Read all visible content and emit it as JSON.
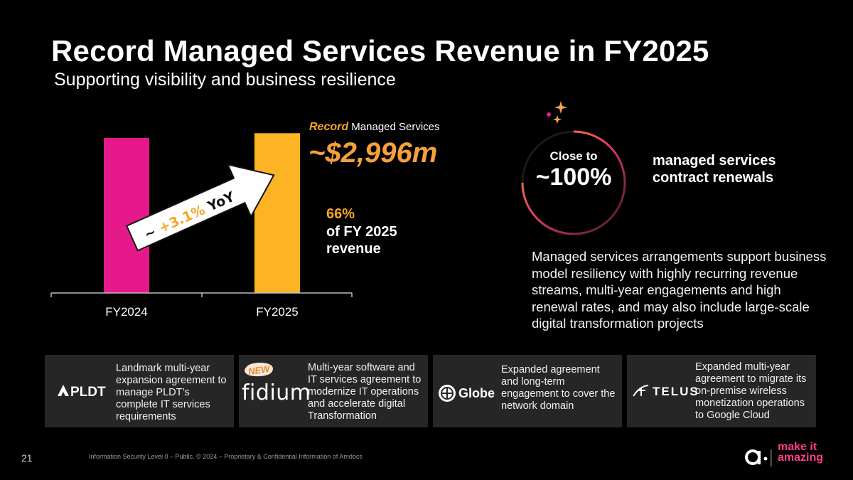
{
  "header": {
    "title": "Record Managed Services Revenue in FY2025",
    "subtitle": "Supporting visibility and business resilience"
  },
  "chart_data": {
    "type": "bar",
    "categories": [
      "FY2024",
      "FY2025"
    ],
    "values": [
      2906,
      2996
    ],
    "colors": [
      "#e6198a",
      "#fcb424"
    ],
    "ylim": [
      0,
      3200
    ],
    "title": "",
    "xlabel": "",
    "ylabel": "",
    "annotation": {
      "prefix": "~ ",
      "growth": "+3.1%",
      "suffix": " YoY"
    }
  },
  "highlight": {
    "record_word": "Record",
    "record_rest": " Managed Services",
    "amount": "~$2,996m",
    "share_pct": "66%",
    "share_text_1": "of FY 2025",
    "share_text_2": "revenue"
  },
  "renewals": {
    "close_to": "Close to",
    "rate": "~100%",
    "label_1": "managed services",
    "label_2": "contract renewals",
    "description": "Managed services arrangements support business model resiliency with highly recurring revenue streams, multi-year engagements and high renewal rates, and may also include large-scale digital transformation projects"
  },
  "cards": [
    {
      "logo": "PLDT",
      "text": "Landmark multi-year expansion agreement to manage PLDT’s complete IT services requirements"
    },
    {
      "logo": "fidium",
      "badge": "NEW",
      "text": "Multi-year software and IT services agreement to modernize IT operations and accelerate digital Transformation"
    },
    {
      "logo": "Globe",
      "text": "Expanded agreement and long-term engagement to cover the network domain"
    },
    {
      "logo": "TELUS",
      "text": "Expanded multi-year agreement to migrate its on-premise wireless monetization operations to Google Cloud"
    }
  ],
  "footer": {
    "page_number": "21",
    "note": "Information Security Level 0 – Public. © 2024 – Proprietary & Confidential Information of Amdocs",
    "brand_line1": "make it",
    "brand_line2": "amazing"
  }
}
